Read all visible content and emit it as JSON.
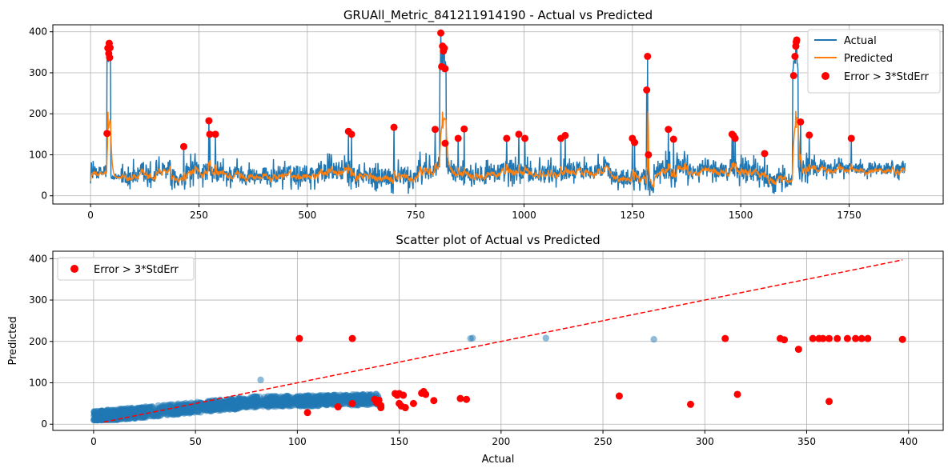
{
  "chart_data": [
    {
      "type": "line",
      "title": "GRUAll_Metric_841211914190 - Actual vs Predicted",
      "xlabel": "",
      "ylabel": "",
      "xlim": [
        -87,
        1967
      ],
      "ylim": [
        -20,
        417
      ],
      "x_ticks": [
        0,
        250,
        500,
        750,
        1000,
        1250,
        1500,
        1750
      ],
      "y_ticks": [
        0,
        100,
        200,
        300,
        400
      ],
      "grid": true,
      "legend_location": "top-right",
      "legend": [
        "Actual",
        "Predicted",
        "Error > 3*StdErr"
      ],
      "colors": {
        "actual": "#1f77b4",
        "predicted": "#ff7f0e",
        "error": "#ff0000"
      },
      "series": [
        {
          "name": "Actual",
          "description": "noisy time series around 30-100 with spikes",
          "segments": [
            [
              0,
              45,
              30,
              90
            ],
            [
              30,
              45,
              5,
              105
            ],
            [
              45,
              70,
              35,
              55
            ],
            [
              70,
              150,
              10,
              95
            ],
            [
              150,
              185,
              25,
              105
            ],
            [
              185,
              220,
              5,
              70
            ],
            [
              220,
              275,
              20,
              110
            ],
            [
              275,
              350,
              15,
              100
            ],
            [
              350,
              430,
              10,
              95
            ],
            [
              430,
              520,
              15,
              100
            ],
            [
              520,
              600,
              20,
              110
            ],
            [
              600,
              680,
              10,
              95
            ],
            [
              680,
              760,
              5,
              100
            ],
            [
              760,
              800,
              20,
              120
            ],
            [
              800,
              830,
              30,
              120
            ],
            [
              830,
              900,
              20,
              100
            ],
            [
              900,
              1000,
              15,
              110
            ],
            [
              1000,
              1100,
              20,
              100
            ],
            [
              1100,
              1200,
              25,
              110
            ],
            [
              1200,
              1280,
              10,
              90
            ],
            [
              1280,
              1300,
              0,
              60
            ],
            [
              1300,
              1380,
              20,
              120
            ],
            [
              1380,
              1480,
              30,
              100
            ],
            [
              1480,
              1550,
              20,
              110
            ],
            [
              1550,
              1625,
              5,
              80
            ],
            [
              1625,
              1700,
              30,
              115
            ],
            [
              1700,
              1880,
              40,
              100
            ]
          ]
        },
        {
          "name": "Predicted",
          "description": "smoothed version of actual around 20-80 with peaks ~205"
        },
        {
          "name": "Error > 3*StdErr",
          "points": [
            [
              38,
              152
            ],
            [
              40,
              360
            ],
            [
              42,
              347
            ],
            [
              43,
              372
            ],
            [
              44,
              337
            ],
            [
              45,
              361
            ],
            [
              215,
              120
            ],
            [
              273,
              183
            ],
            [
              275,
              150
            ],
            [
              288,
              150
            ],
            [
              595,
              157
            ],
            [
              602,
              150
            ],
            [
              700,
              167
            ],
            [
              795,
              162
            ],
            [
              808,
              397
            ],
            [
              810,
              315
            ],
            [
              812,
              365
            ],
            [
              814,
              353
            ],
            [
              816,
              360
            ],
            [
              818,
              310
            ],
            [
              818,
              128
            ],
            [
              848,
              140
            ],
            [
              862,
              163
            ],
            [
              960,
              140
            ],
            [
              988,
              150
            ],
            [
              1002,
              140
            ],
            [
              1085,
              140
            ],
            [
              1095,
              147
            ],
            [
              1250,
              140
            ],
            [
              1255,
              130
            ],
            [
              1283,
              258
            ],
            [
              1285,
              340
            ],
            [
              1287,
              100
            ],
            [
              1333,
              162
            ],
            [
              1345,
              138
            ],
            [
              1480,
              150
            ],
            [
              1483,
              147
            ],
            [
              1487,
              140
            ],
            [
              1555,
              103
            ],
            [
              1622,
              293
            ],
            [
              1625,
              340
            ],
            [
              1627,
              365
            ],
            [
              1628,
              375
            ],
            [
              1629,
              380
            ],
            [
              1638,
              180
            ],
            [
              1658,
              148
            ],
            [
              1755,
              140
            ]
          ]
        }
      ]
    },
    {
      "type": "scatter",
      "title": "Scatter plot of Actual vs Predicted",
      "xlabel": "Actual",
      "ylabel": "Predicted",
      "xlim": [
        -20,
        417
      ],
      "ylim": [
        -15,
        418
      ],
      "x_ticks": [
        0,
        50,
        100,
        150,
        200,
        250,
        300,
        350,
        400
      ],
      "y_ticks": [
        0,
        100,
        200,
        300,
        400
      ],
      "grid": true,
      "legend_location": "top-left",
      "legend": [
        "Error > 3*StdErr"
      ],
      "colors": {
        "points": "#1f77b4",
        "error": "#ff0000",
        "diagonal": "#ff0000"
      },
      "diagonal_line": [
        [
          5,
          5
        ],
        [
          397,
          397
        ]
      ],
      "blue_points_description": "dense cloud of actual 0-140, predicted 10-90",
      "blue_outliers": [
        [
          185,
          207
        ],
        [
          186,
          208
        ],
        [
          222,
          208
        ],
        [
          275,
          205
        ],
        [
          82,
          107
        ]
      ],
      "red_points": [
        [
          101,
          207
        ],
        [
          105,
          28
        ],
        [
          120,
          42
        ],
        [
          127,
          207
        ],
        [
          127,
          50
        ],
        [
          138,
          60
        ],
        [
          139,
          52
        ],
        [
          140,
          58
        ],
        [
          141,
          45
        ],
        [
          141,
          40
        ],
        [
          148,
          74
        ],
        [
          149,
          70
        ],
        [
          150,
          50
        ],
        [
          150,
          74
        ],
        [
          151,
          44
        ],
        [
          152,
          70
        ],
        [
          153,
          40
        ],
        [
          157,
          50
        ],
        [
          161,
          75
        ],
        [
          162,
          79
        ],
        [
          163,
          72
        ],
        [
          167,
          57
        ],
        [
          180,
          62
        ],
        [
          183,
          60
        ],
        [
          258,
          68
        ],
        [
          293,
          48
        ],
        [
          310,
          207
        ],
        [
          316,
          72
        ],
        [
          337,
          207
        ],
        [
          339,
          204
        ],
        [
          346,
          181
        ],
        [
          353,
          207
        ],
        [
          356,
          207
        ],
        [
          358,
          207
        ],
        [
          361,
          207
        ],
        [
          361,
          55
        ],
        [
          365,
          207
        ],
        [
          370,
          207
        ],
        [
          374,
          207
        ],
        [
          377,
          207
        ],
        [
          380,
          207
        ],
        [
          397,
          205
        ]
      ]
    }
  ]
}
